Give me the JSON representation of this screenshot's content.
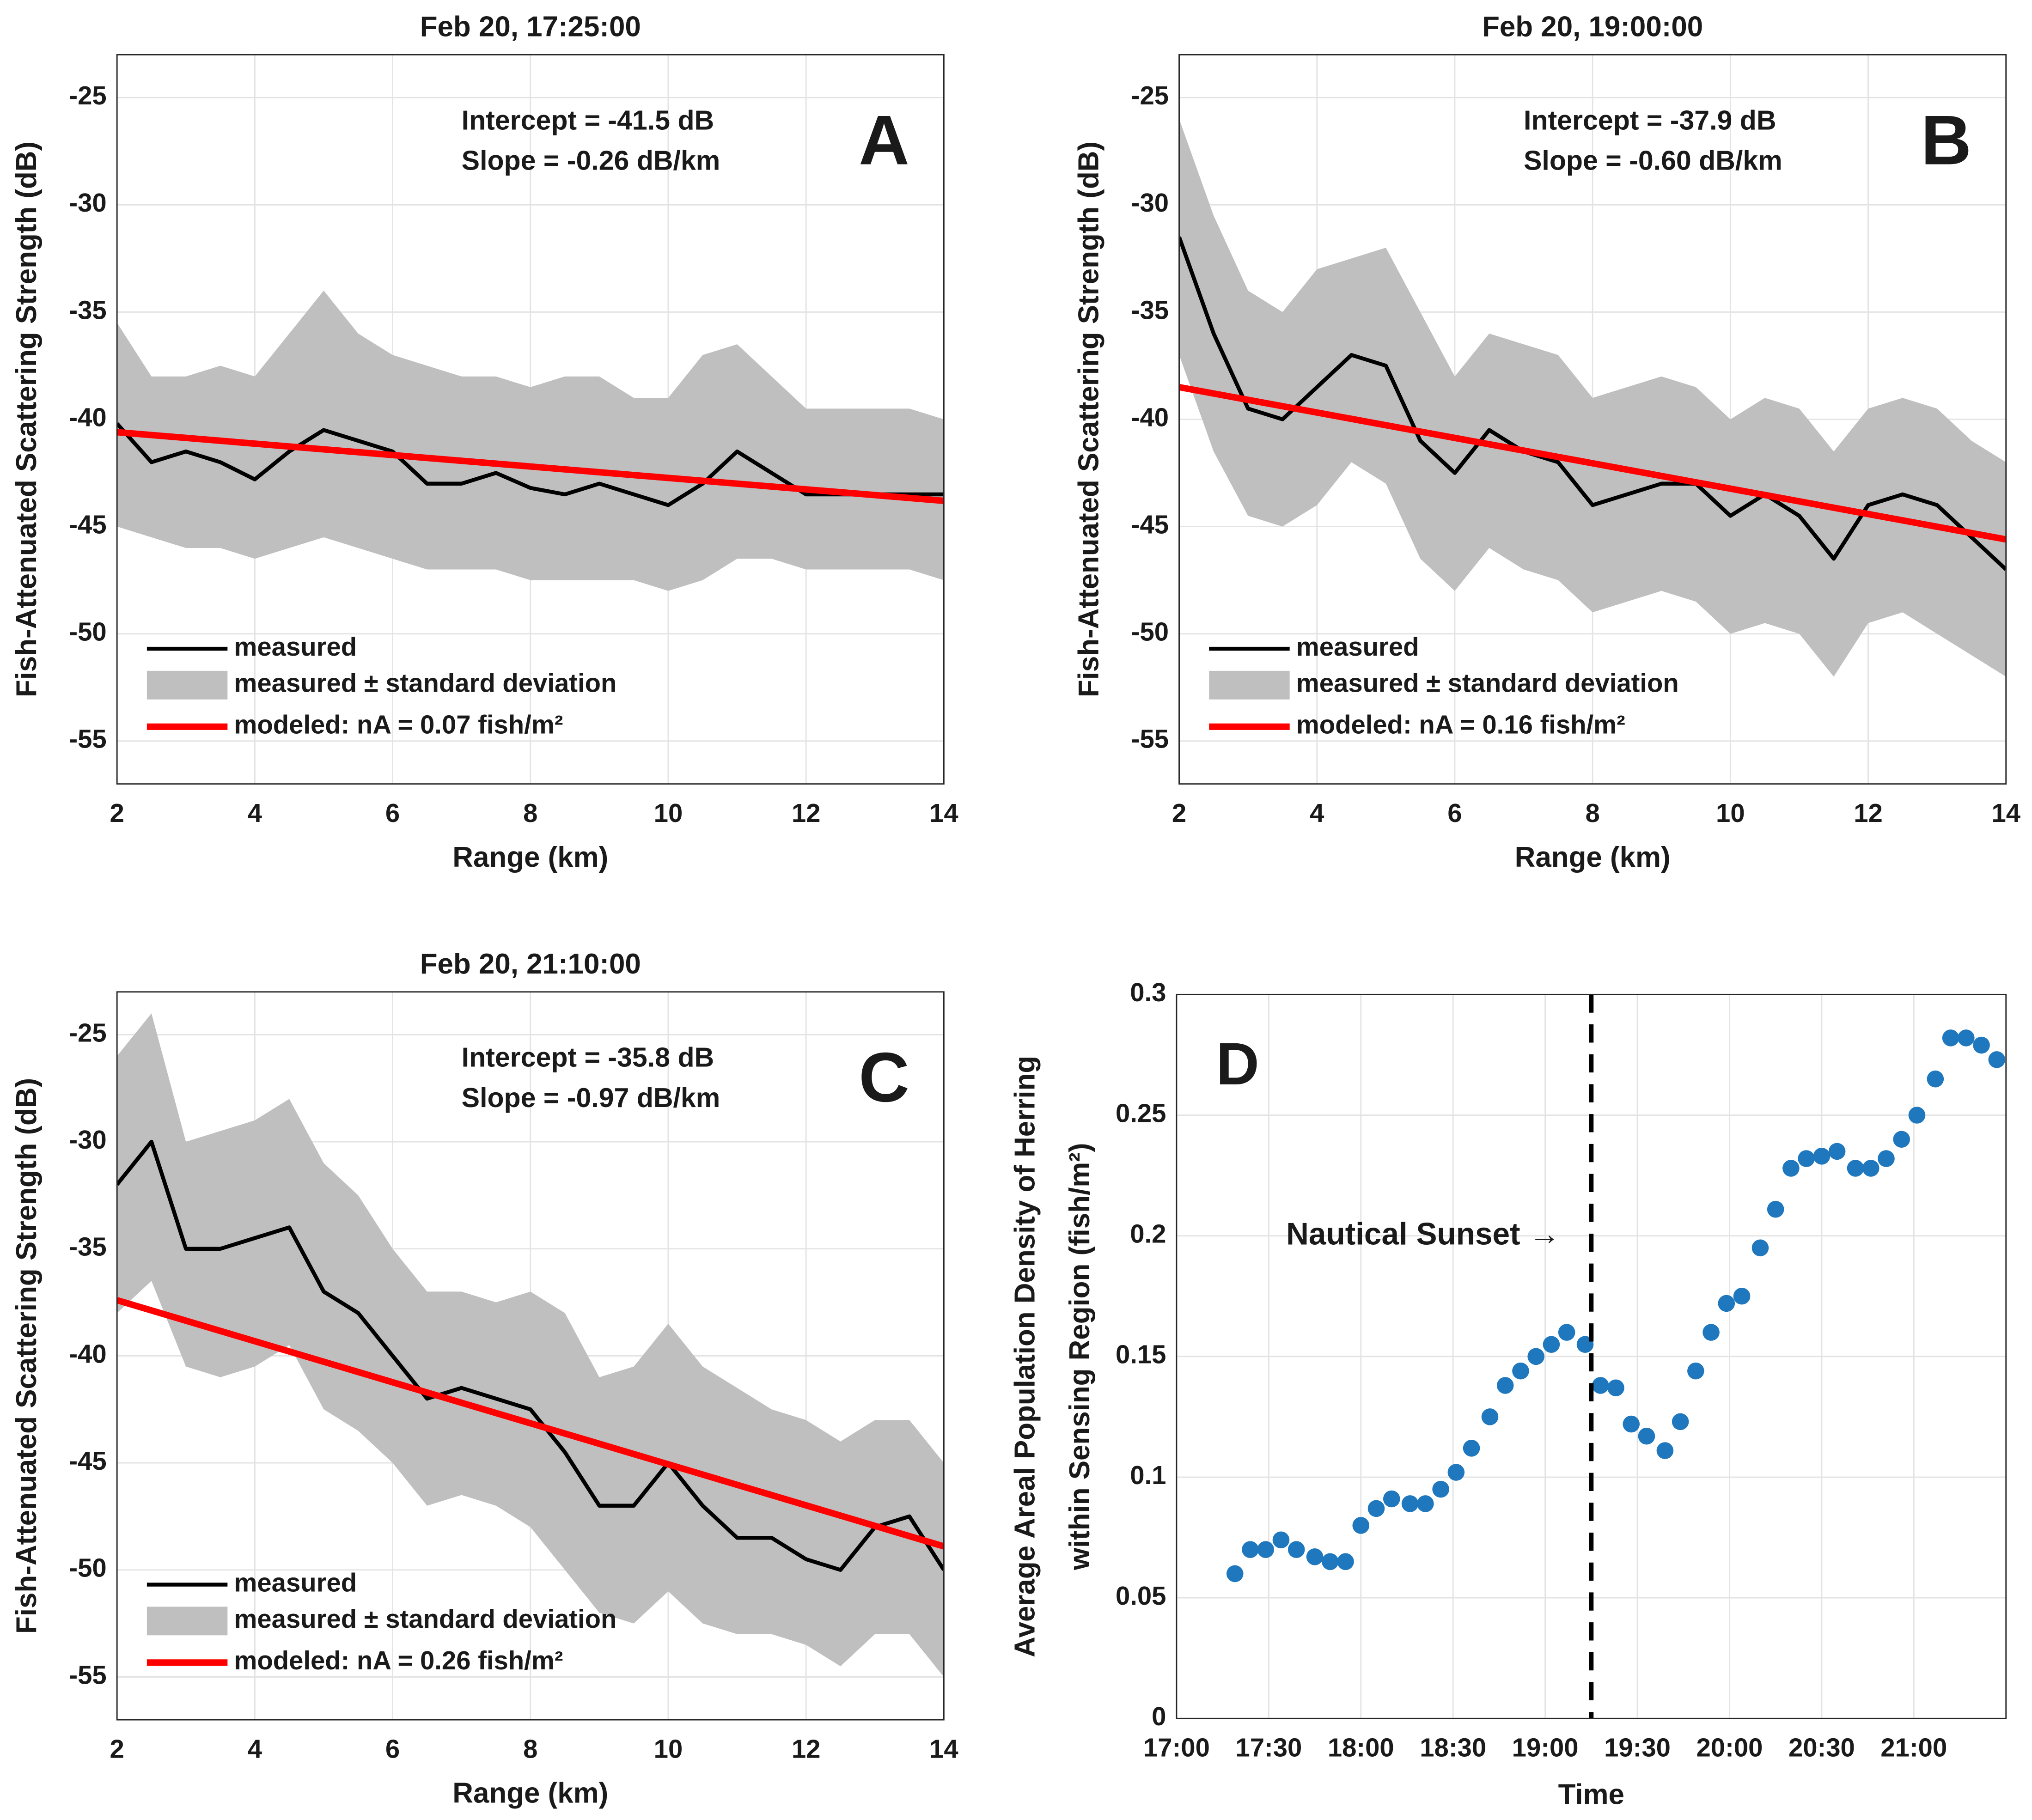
{
  "chart_data": [
    {
      "type": "line",
      "title": "Feb 20, 17:25:00",
      "xlabel": "Range (km)",
      "ylabel": "Fish-Attenuated Scattering Strength (dB)",
      "panel_label": "A",
      "annotations": [
        "Intercept = -41.5 dB",
        "Slope = -0.26 dB/km"
      ],
      "xlim": [
        2,
        14
      ],
      "xticks": [
        2,
        4,
        6,
        8,
        10,
        12,
        14
      ],
      "ylim": [
        -57,
        -23
      ],
      "yticks": [
        -55,
        -50,
        -45,
        -40,
        -35,
        -30,
        -25
      ],
      "grid": true,
      "legend": "lower left",
      "x": [
        2,
        2.5,
        3,
        3.5,
        4,
        4.5,
        5,
        5.5,
        6,
        6.5,
        7,
        7.5,
        8,
        8.5,
        9,
        9.5,
        10,
        10.5,
        11,
        11.5,
        12,
        12.5,
        13,
        13.5,
        14
      ],
      "series": [
        {
          "name": "measured",
          "color": "#000000",
          "values": [
            -40.2,
            -42,
            -41.5,
            -42,
            -42.8,
            -41.5,
            -40.5,
            -41,
            -41.5,
            -43,
            -43,
            -42.5,
            -43.2,
            -43.5,
            -43,
            -43.5,
            -44,
            -43,
            -41.5,
            -42.5,
            -43.5,
            -43.5,
            -43.5,
            -43.5,
            -43.5
          ]
        },
        {
          "name": "measured ± standard deviation",
          "color": "#bfbfbf",
          "upper": [
            -35.5,
            -38,
            -38,
            -37.5,
            -38,
            -36,
            -34,
            -36,
            -37,
            -37.5,
            -38,
            -38,
            -38.5,
            -38,
            -38,
            -39,
            -39,
            -37,
            -36.5,
            -38,
            -39.5,
            -39.5,
            -39.5,
            -39.5,
            -40
          ],
          "lower": [
            -45,
            -45.5,
            -46,
            -46,
            -46.5,
            -46,
            -45.5,
            -46,
            -46.5,
            -47,
            -47,
            -47,
            -47.5,
            -47.5,
            -47.5,
            -47.5,
            -48,
            -47.5,
            -46.5,
            -46.5,
            -47,
            -47,
            -47,
            -47,
            -47.5
          ]
        },
        {
          "name": "modeled: nA = 0.07 fish/m²",
          "color": "#ff0000",
          "x": [
            2,
            14
          ],
          "values": [
            -40.6,
            -43.8
          ]
        }
      ]
    },
    {
      "type": "line",
      "title": "Feb 20, 19:00:00",
      "xlabel": "Range (km)",
      "ylabel": "Fish-Attenuated Scattering Strength (dB)",
      "panel_label": "B",
      "annotations": [
        "Intercept = -37.9 dB",
        "Slope = -0.60 dB/km"
      ],
      "xlim": [
        2,
        14
      ],
      "xticks": [
        2,
        4,
        6,
        8,
        10,
        12,
        14
      ],
      "ylim": [
        -57,
        -23
      ],
      "yticks": [
        -55,
        -50,
        -45,
        -40,
        -35,
        -30,
        -25
      ],
      "grid": true,
      "legend": "lower left",
      "x": [
        2,
        2.5,
        3,
        3.5,
        4,
        4.5,
        5,
        5.5,
        6,
        6.5,
        7,
        7.5,
        8,
        8.5,
        9,
        9.5,
        10,
        10.5,
        11,
        11.5,
        12,
        12.5,
        13,
        13.5,
        14
      ],
      "series": [
        {
          "name": "measured",
          "color": "#000000",
          "values": [
            -31.5,
            -36,
            -39.5,
            -40,
            -38.5,
            -37,
            -37.5,
            -41,
            -42.5,
            -40.5,
            -41.5,
            -42,
            -44,
            -43.5,
            -43,
            -43,
            -44.5,
            -43.5,
            -44.5,
            -46.5,
            -44,
            -43.5,
            -44,
            -45.5,
            -47
          ]
        },
        {
          "name": "measured ± standard deviation",
          "color": "#bfbfbf",
          "upper": [
            -26,
            -30.5,
            -34,
            -35,
            -33,
            -32.5,
            -32,
            -35,
            -38,
            -36,
            -36.5,
            -37,
            -39,
            -38.5,
            -38,
            -38.5,
            -40,
            -39,
            -39.5,
            -41.5,
            -39.5,
            -39,
            -39.5,
            -41,
            -42
          ],
          "lower": [
            -37,
            -41.5,
            -44.5,
            -45,
            -44,
            -42,
            -43,
            -46.5,
            -48,
            -46,
            -47,
            -47.5,
            -49,
            -48.5,
            -48,
            -48.5,
            -50,
            -49.5,
            -50,
            -52,
            -49.5,
            -49,
            -50,
            -51,
            -52
          ]
        },
        {
          "name": "modeled: nA = 0.16 fish/m²",
          "color": "#ff0000",
          "x": [
            2,
            14
          ],
          "values": [
            -38.5,
            -45.6
          ]
        }
      ]
    },
    {
      "type": "line",
      "title": "Feb 20, 21:10:00",
      "xlabel": "Range (km)",
      "ylabel": "Fish-Attenuated Scattering Strength (dB)",
      "panel_label": "C",
      "annotations": [
        "Intercept = -35.8 dB",
        "Slope = -0.97 dB/km"
      ],
      "xlim": [
        2,
        14
      ],
      "xticks": [
        2,
        4,
        6,
        8,
        10,
        12,
        14
      ],
      "ylim": [
        -57,
        -23
      ],
      "yticks": [
        -55,
        -50,
        -45,
        -40,
        -35,
        -30,
        -25
      ],
      "grid": true,
      "legend": "lower left",
      "x": [
        2,
        2.5,
        3,
        3.5,
        4,
        4.5,
        5,
        5.5,
        6,
        6.5,
        7,
        7.5,
        8,
        8.5,
        9,
        9.5,
        10,
        10.5,
        11,
        11.5,
        12,
        12.5,
        13,
        13.5,
        14
      ],
      "series": [
        {
          "name": "measured",
          "color": "#000000",
          "values": [
            -32,
            -30,
            -35,
            -35,
            -34.5,
            -34,
            -37,
            -38,
            -40,
            -42,
            -41.5,
            -42,
            -42.5,
            -44.5,
            -47,
            -47,
            -45,
            -47,
            -48.5,
            -48.5,
            -49.5,
            -50,
            -48,
            -47.5,
            -50
          ]
        },
        {
          "name": "measured ± standard deviation",
          "color": "#bfbfbf",
          "upper": [
            -26,
            -24,
            -30,
            -29.5,
            -29,
            -28,
            -31,
            -32.5,
            -35,
            -37,
            -37,
            -37.5,
            -37,
            -38,
            -41,
            -40.5,
            -38.5,
            -40.5,
            -41.5,
            -42.5,
            -43,
            -44,
            -43,
            -43,
            -45
          ],
          "lower": [
            -38,
            -36.5,
            -40.5,
            -41,
            -40.5,
            -39.5,
            -42.5,
            -43.5,
            -45,
            -47,
            -46.5,
            -47,
            -48,
            -50,
            -52,
            -52.5,
            -51,
            -52.5,
            -53,
            -53,
            -53.5,
            -54.5,
            -53,
            -53,
            -55
          ]
        },
        {
          "name": "modeled: nA = 0.26 fish/m²",
          "color": "#ff0000",
          "x": [
            2,
            14
          ],
          "values": [
            -37.4,
            -48.9
          ]
        }
      ]
    },
    {
      "type": "scatter",
      "xlabel": "Time",
      "ylabel": [
        "Average Areal Population Density of Herring",
        "within Sensing Region (fish/m²)"
      ],
      "panel_label": "D",
      "xlim": [
        "17:00",
        "21:30"
      ],
      "xticks": [
        "17:00",
        "17:30",
        "18:00",
        "18:30",
        "19:00",
        "19:30",
        "20:00",
        "20:30",
        "21:00"
      ],
      "ylim": [
        0,
        0.3
      ],
      "yticks": [
        0,
        0.05,
        0.1,
        0.15,
        0.2,
        0.25,
        0.3
      ],
      "grid": true,
      "vline": {
        "x": "19:15",
        "label": "Nautical Sunset →",
        "color": "#000000"
      },
      "x": [
        "17:19",
        "17:24",
        "17:29",
        "17:34",
        "17:39",
        "17:45",
        "17:50",
        "17:55",
        "18:00",
        "18:05",
        "18:10",
        "18:16",
        "18:21",
        "18:26",
        "18:31",
        "18:36",
        "18:42",
        "18:47",
        "18:52",
        "18:57",
        "19:02",
        "19:07",
        "19:13",
        "19:18",
        "19:23",
        "19:28",
        "19:33",
        "19:39",
        "19:44",
        "19:49",
        "19:54",
        "19:59",
        "20:04",
        "20:10",
        "20:15",
        "20:20",
        "20:25",
        "20:30",
        "20:35",
        "20:41",
        "20:46",
        "20:51",
        "20:56",
        "21:01",
        "21:07",
        "21:12",
        "21:17",
        "21:22",
        "21:27"
      ],
      "series": [
        {
          "color": "#1f77bd",
          "values": [
            0.06,
            0.07,
            0.07,
            0.074,
            0.07,
            0.067,
            0.065,
            0.065,
            0.08,
            0.087,
            0.091,
            0.089,
            0.089,
            0.095,
            0.102,
            0.112,
            0.125,
            0.138,
            0.144,
            0.15,
            0.155,
            0.16,
            0.155,
            0.138,
            0.137,
            0.122,
            0.117,
            0.111,
            0.123,
            0.144,
            0.16,
            0.172,
            0.175,
            0.195,
            0.211,
            0.228,
            0.232,
            0.233,
            0.235,
            0.228,
            0.228,
            0.232,
            0.24,
            0.25,
            0.265,
            0.282,
            0.282,
            0.279,
            0.273
          ]
        }
      ]
    }
  ]
}
